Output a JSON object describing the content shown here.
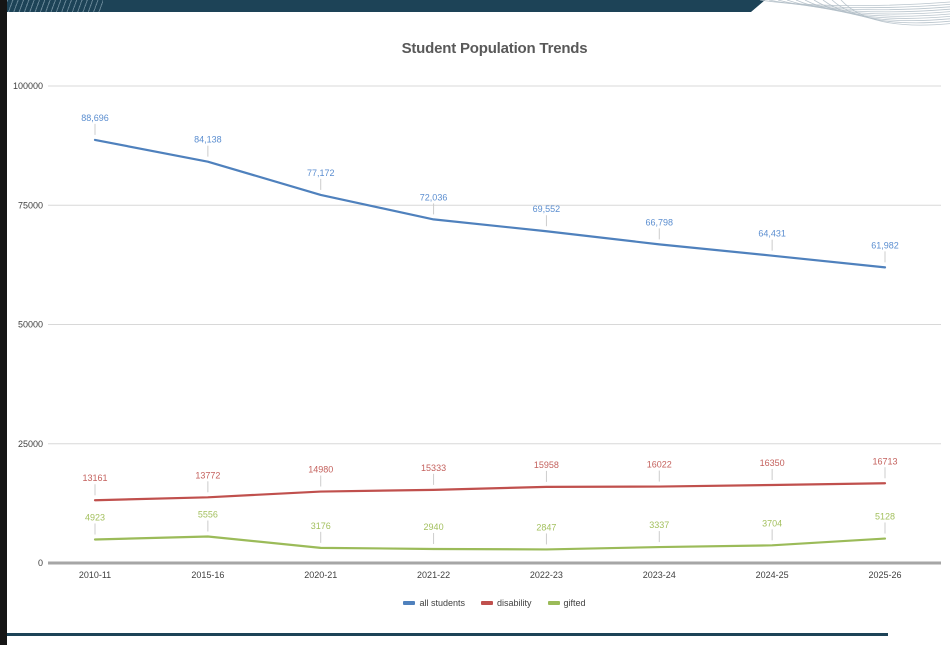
{
  "slide": {
    "title": "Student Population Trends"
  },
  "chart_data": {
    "type": "line",
    "title": "Student Population Trends",
    "categories": [
      "2010-11",
      "2015-16",
      "2020-21",
      "2021-22",
      "2022-23",
      "2023-24",
      "2024-25",
      "2025-26"
    ],
    "series": [
      {
        "name": "all students",
        "color": "#4f81bd",
        "label_color": "#5b8ed0",
        "values": [
          88696,
          84138,
          77172,
          72036,
          69552,
          66798,
          64431,
          61982
        ],
        "labels": [
          "88,696",
          "84,138",
          "77,172",
          "72,036",
          "69,552",
          "66,798",
          "64,431",
          "61,982"
        ]
      },
      {
        "name": "disability",
        "color": "#c0504d",
        "label_color": "#c4615d",
        "values": [
          13161,
          13772,
          14980,
          15333,
          15958,
          16022,
          16350,
          16713
        ],
        "labels": [
          "13161",
          "13772",
          "14980",
          "15333",
          "15958",
          "16022",
          "16350",
          "16713"
        ]
      },
      {
        "name": "gifted",
        "color": "#9bbb59",
        "label_color": "#a3c05e",
        "values": [
          4923,
          5556,
          3176,
          2940,
          2847,
          3337,
          3704,
          5128
        ],
        "labels": [
          "4923",
          "5556",
          "3176",
          "2940",
          "2847",
          "3337",
          "3704",
          "5128"
        ]
      }
    ],
    "xlabel": "",
    "ylabel": "",
    "y_axis": {
      "range": [
        0,
        100000
      ],
      "ticks": [
        0,
        25000,
        50000,
        75000,
        100000
      ],
      "tick_labels": [
        "0",
        "25000",
        "50000",
        "75000",
        "100000"
      ]
    },
    "grid": true,
    "legend": {
      "position": "bottom",
      "entries": [
        "all students",
        "disability",
        "gifted"
      ]
    }
  },
  "theme": {
    "banner": "#1d4357",
    "left_strip": "#151515",
    "bottom_rule": "#1d4357",
    "wave_line": "#b3bfc8",
    "grid_line": "#d8d8d8",
    "axis_line": "#a6a6a6",
    "tick_label": "#404040",
    "title_text": "#595959",
    "leader_line": "#cccccc"
  }
}
